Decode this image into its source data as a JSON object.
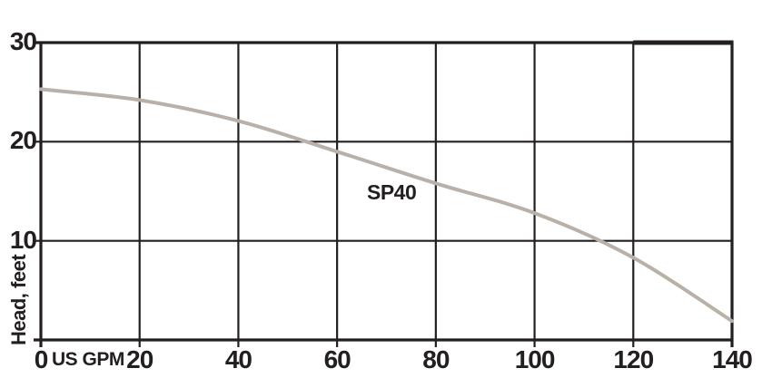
{
  "colors": {
    "ink": "#231f20",
    "curve": "#b9b0a8",
    "background": "#ffffff"
  },
  "chart_data": {
    "type": "line",
    "title": "",
    "xlabel": "US GPM",
    "ylabel": "Head, feet",
    "xlim": [
      0,
      140
    ],
    "ylim": [
      0,
      30
    ],
    "x_ticks": [
      0,
      20,
      40,
      60,
      80,
      100,
      120,
      140
    ],
    "y_tick_labels": [
      10,
      20,
      30
    ],
    "y_gridlines": [
      0,
      10,
      20,
      30
    ],
    "grid": true,
    "legend_position": "none",
    "thick_top_border_from_x": 120,
    "series": [
      {
        "name": "SP40",
        "x": [
          0,
          20,
          40,
          60,
          80,
          100,
          120,
          140
        ],
        "values": [
          25.3,
          24.2,
          22.1,
          19.0,
          15.8,
          12.8,
          8.3,
          1.9
        ]
      }
    ]
  }
}
